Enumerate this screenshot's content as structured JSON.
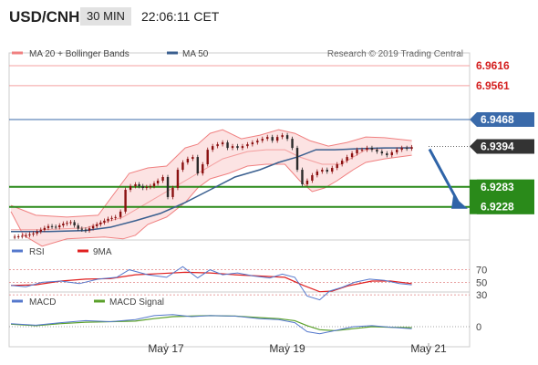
{
  "header": {
    "pair": "USD/CNH",
    "timeframe": "30 MIN",
    "time": "22:06:11 CET"
  },
  "copyright": "Research © 2019 Trading Central",
  "colors": {
    "bollinger": "#f08080",
    "ma50": "#3a5f8f",
    "resistance": "#f4a0a0",
    "current": "#3a6aaa",
    "support": "#2a8a1a",
    "arrow": "#2f64a8",
    "price": "#333333",
    "rsi": "#5578cc",
    "rsi9ma": "#e02020",
    "macd": "#5578cc",
    "macdsig": "#5aa02a"
  },
  "legends": {
    "main": [
      {
        "label": "MA 20 + Bollinger Bands"
      },
      {
        "label": "MA 50"
      }
    ],
    "rsi": [
      {
        "label": "RSI"
      },
      {
        "label": "9MA"
      }
    ],
    "macd": [
      {
        "label": "MACD"
      },
      {
        "label": "MACD Signal"
      }
    ]
  },
  "chart_data": {
    "type": "candlestick",
    "y_range": [
      6.9137,
      6.9651
    ],
    "levels": [
      {
        "value": 6.9616,
        "label": "6.9616",
        "kind": "resistance"
      },
      {
        "value": 6.9561,
        "label": "6.9561",
        "kind": "resistance"
      },
      {
        "value": 6.9468,
        "label": "6.9468",
        "kind": "current"
      },
      {
        "value": 6.9394,
        "label": "6.9394",
        "kind": "price"
      },
      {
        "value": 6.9283,
        "label": "6.9283",
        "kind": "support"
      },
      {
        "value": 6.9228,
        "label": "6.9228",
        "kind": "support"
      }
    ],
    "x_labels": [
      "May 17",
      "May 19",
      "May 21"
    ],
    "rsi_levels": [
      "70",
      "50",
      "30"
    ],
    "macd_zero": "0",
    "price_path": [
      [
        0,
        6.9145
      ],
      [
        6,
        6.9147
      ],
      [
        12,
        6.915
      ],
      [
        18,
        6.9155
      ],
      [
        24,
        6.9165
      ],
      [
        30,
        6.9175
      ],
      [
        36,
        6.9172
      ],
      [
        42,
        6.9182
      ],
      [
        48,
        6.9186
      ],
      [
        54,
        6.9168
      ],
      [
        60,
        6.9163
      ],
      [
        66,
        6.9175
      ],
      [
        72,
        6.9185
      ],
      [
        78,
        6.9195
      ],
      [
        84,
        6.92
      ],
      [
        88,
        6.9215
      ],
      [
        92,
        6.9275
      ],
      [
        96,
        6.9285
      ],
      [
        100,
        6.929
      ],
      [
        106,
        6.928
      ],
      [
        112,
        6.9285
      ],
      [
        118,
        6.93
      ],
      [
        122,
        6.931
      ],
      [
        126,
        6.9255
      ],
      [
        130,
        6.928
      ],
      [
        134,
        6.933
      ],
      [
        138,
        6.935
      ],
      [
        142,
        6.936
      ],
      [
        146,
        6.9365
      ],
      [
        150,
        6.932
      ],
      [
        154,
        6.9345
      ],
      [
        158,
        6.9385
      ],
      [
        162,
        6.9395
      ],
      [
        166,
        6.94
      ],
      [
        170,
        6.9405
      ],
      [
        174,
        6.939
      ],
      [
        178,
        6.9395
      ],
      [
        182,
        6.939
      ],
      [
        186,
        6.9395
      ],
      [
        190,
        6.94
      ],
      [
        194,
        6.9405
      ],
      [
        198,
        6.941
      ],
      [
        202,
        6.9415
      ],
      [
        206,
        6.942
      ],
      [
        210,
        6.941
      ],
      [
        214,
        6.942
      ],
      [
        218,
        6.9425
      ],
      [
        222,
        6.9415
      ],
      [
        226,
        6.939
      ],
      [
        230,
        6.933
      ],
      [
        234,
        6.929
      ],
      [
        238,
        6.93
      ],
      [
        242,
        6.9315
      ],
      [
        246,
        6.9325
      ],
      [
        250,
        6.933
      ],
      [
        254,
        6.9325
      ],
      [
        258,
        6.9335
      ],
      [
        262,
        6.9345
      ],
      [
        266,
        6.9355
      ],
      [
        270,
        6.9365
      ],
      [
        274,
        6.9375
      ],
      [
        278,
        6.9385
      ],
      [
        282,
        6.9385
      ],
      [
        286,
        6.939
      ],
      [
        290,
        6.9385
      ],
      [
        294,
        6.938
      ],
      [
        298,
        6.9375
      ],
      [
        302,
        6.937
      ],
      [
        306,
        6.9378
      ],
      [
        310,
        6.9385
      ],
      [
        314,
        6.939
      ],
      [
        318,
        6.9388
      ],
      [
        322,
        6.9392
      ]
    ],
    "bb_upper": [
      [
        0,
        6.9232
      ],
      [
        20,
        6.9205
      ],
      [
        45,
        6.92
      ],
      [
        70,
        6.9205
      ],
      [
        95,
        6.932
      ],
      [
        110,
        6.9335
      ],
      [
        125,
        6.934
      ],
      [
        140,
        6.939
      ],
      [
        150,
        6.94
      ],
      [
        160,
        6.943
      ],
      [
        170,
        6.944
      ],
      [
        185,
        6.9415
      ],
      [
        200,
        6.9425
      ],
      [
        215,
        6.944
      ],
      [
        228,
        6.943
      ],
      [
        240,
        6.941
      ],
      [
        255,
        6.9395
      ],
      [
        270,
        6.9405
      ],
      [
        285,
        6.942
      ],
      [
        300,
        6.9418
      ],
      [
        322,
        6.941
      ]
    ],
    "bb_lower": [
      [
        0,
        6.9215
      ],
      [
        10,
        6.915
      ],
      [
        25,
        6.912
      ],
      [
        45,
        6.914
      ],
      [
        75,
        6.9145
      ],
      [
        90,
        6.914
      ],
      [
        100,
        6.915
      ],
      [
        110,
        6.918
      ],
      [
        125,
        6.92
      ],
      [
        140,
        6.924
      ],
      [
        150,
        6.928
      ],
      [
        160,
        6.9305
      ],
      [
        175,
        6.932
      ],
      [
        190,
        6.934
      ],
      [
        205,
        6.9345
      ],
      [
        220,
        6.9345
      ],
      [
        232,
        6.93
      ],
      [
        242,
        6.927
      ],
      [
        252,
        6.928
      ],
      [
        262,
        6.93
      ],
      [
        275,
        6.933
      ],
      [
        285,
        6.935
      ],
      [
        300,
        6.936
      ],
      [
        322,
        6.937
      ]
    ],
    "ma20": [
      [
        0,
        6.9165
      ],
      [
        25,
        6.9165
      ],
      [
        60,
        6.917
      ],
      [
        90,
        6.92
      ],
      [
        110,
        6.924
      ],
      [
        130,
        6.928
      ],
      [
        150,
        6.932
      ],
      [
        170,
        6.936
      ],
      [
        190,
        6.938
      ],
      [
        205,
        6.9385
      ],
      [
        220,
        6.9385
      ],
      [
        232,
        6.9365
      ],
      [
        250,
        6.9345
      ],
      [
        265,
        6.9345
      ],
      [
        285,
        6.9385
      ],
      [
        305,
        6.939
      ],
      [
        322,
        6.9392
      ]
    ],
    "ma50": [
      [
        0,
        6.916
      ],
      [
        30,
        6.916
      ],
      [
        60,
        6.9163
      ],
      [
        80,
        6.9172
      ],
      [
        100,
        6.919
      ],
      [
        120,
        6.921
      ],
      [
        140,
        6.924
      ],
      [
        160,
        6.9275
      ],
      [
        180,
        6.931
      ],
      [
        200,
        6.933
      ],
      [
        215,
        6.935
      ],
      [
        230,
        6.9365
      ],
      [
        245,
        6.9385
      ],
      [
        260,
        6.9385
      ],
      [
        280,
        6.9388
      ],
      [
        300,
        6.939
      ],
      [
        322,
        6.939
      ]
    ],
    "rsi_series": [
      [
        0,
        45
      ],
      [
        12,
        43
      ],
      [
        25,
        50
      ],
      [
        40,
        52
      ],
      [
        55,
        48
      ],
      [
        70,
        55
      ],
      [
        85,
        58
      ],
      [
        95,
        70
      ],
      [
        110,
        62
      ],
      [
        125,
        58
      ],
      [
        138,
        75
      ],
      [
        150,
        57
      ],
      [
        160,
        70
      ],
      [
        170,
        62
      ],
      [
        182,
        65
      ],
      [
        195,
        60
      ],
      [
        208,
        57
      ],
      [
        218,
        63
      ],
      [
        228,
        58
      ],
      [
        238,
        28
      ],
      [
        248,
        22
      ],
      [
        256,
        36
      ],
      [
        266,
        42
      ],
      [
        276,
        50
      ],
      [
        288,
        55
      ],
      [
        300,
        53
      ],
      [
        312,
        48
      ],
      [
        322,
        46
      ]
    ],
    "rsi_ma": [
      [
        0,
        45
      ],
      [
        20,
        46
      ],
      [
        40,
        52
      ],
      [
        60,
        55
      ],
      [
        80,
        56
      ],
      [
        100,
        62
      ],
      [
        120,
        64
      ],
      [
        140,
        66
      ],
      [
        160,
        65
      ],
      [
        180,
        62
      ],
      [
        200,
        60
      ],
      [
        220,
        58
      ],
      [
        235,
        45
      ],
      [
        248,
        35
      ],
      [
        258,
        36
      ],
      [
        270,
        44
      ],
      [
        290,
        52
      ],
      [
        305,
        52
      ],
      [
        322,
        48
      ]
    ],
    "macd_series": [
      [
        0,
        6
      ],
      [
        20,
        3
      ],
      [
        40,
        8
      ],
      [
        60,
        12
      ],
      [
        80,
        10
      ],
      [
        100,
        14
      ],
      [
        115,
        22
      ],
      [
        130,
        24
      ],
      [
        145,
        20
      ],
      [
        160,
        22
      ],
      [
        180,
        21
      ],
      [
        200,
        16
      ],
      [
        215,
        14
      ],
      [
        228,
        8
      ],
      [
        238,
        -10
      ],
      [
        248,
        -14
      ],
      [
        260,
        -8
      ],
      [
        275,
        0
      ],
      [
        290,
        2
      ],
      [
        305,
        -1
      ],
      [
        322,
        -4
      ]
    ],
    "macd_signal": [
      [
        0,
        5
      ],
      [
        20,
        2
      ],
      [
        40,
        6
      ],
      [
        60,
        9
      ],
      [
        80,
        10
      ],
      [
        100,
        11
      ],
      [
        115,
        16
      ],
      [
        130,
        20
      ],
      [
        145,
        21
      ],
      [
        160,
        22
      ],
      [
        180,
        21
      ],
      [
        200,
        18
      ],
      [
        215,
        16
      ],
      [
        228,
        12
      ],
      [
        238,
        2
      ],
      [
        248,
        -6
      ],
      [
        260,
        -8
      ],
      [
        275,
        -4
      ],
      [
        290,
        0
      ],
      [
        305,
        -1
      ],
      [
        322,
        -2
      ]
    ]
  }
}
